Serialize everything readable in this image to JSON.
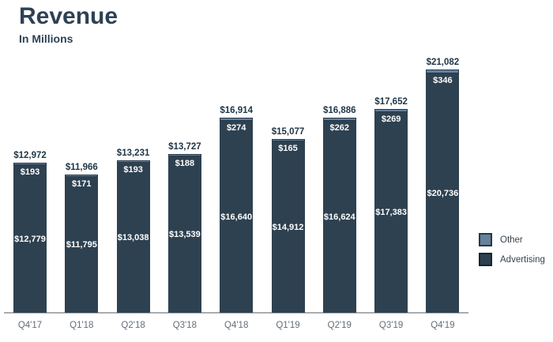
{
  "header": {
    "title": "Revenue",
    "subtitle": "In Millions"
  },
  "legend": {
    "items": [
      {
        "label": "Other",
        "color": "#66829C"
      },
      {
        "label": "Advertising",
        "color": "#2E4150"
      }
    ]
  },
  "colors": {
    "title": "#2E4154",
    "advertising": "#2E4150",
    "other": "#66829C",
    "other_border": "#24384A",
    "advertising_border": "#17262F",
    "total_label": "#1E3546",
    "value_label": "#FFFFFF",
    "axis_line": "#A9ADAF",
    "category_label": "#646E78",
    "legend_label": "#37434D"
  },
  "chart_data": {
    "type": "bar",
    "stacked": true,
    "title": "Revenue",
    "subtitle": "In Millions",
    "unit": "USD millions",
    "categories": [
      "Q4'17",
      "Q1'18",
      "Q2'18",
      "Q3'18",
      "Q4'18",
      "Q1'19",
      "Q2'19",
      "Q3'19",
      "Q4'19"
    ],
    "series": [
      {
        "name": "Advertising",
        "values": [
          12779,
          11795,
          13038,
          13539,
          16640,
          14912,
          16624,
          17383,
          20736
        ]
      },
      {
        "name": "Other",
        "values": [
          193,
          171,
          193,
          188,
          274,
          165,
          262,
          269,
          346
        ]
      }
    ],
    "totals": [
      12972,
      11966,
      13231,
      13727,
      16914,
      15077,
      16886,
      17652,
      21082
    ],
    "total_labels": [
      "$12,972",
      "$11,966",
      "$13,231",
      "$13,727",
      "$16,914",
      "$15,077",
      "$16,886",
      "$17,652",
      "$21,082"
    ],
    "series_labels": {
      "Advertising": [
        "$12,779",
        "$11,795",
        "$13,038",
        "$13,539",
        "$16,640",
        "$14,912",
        "$16,624",
        "$17,383",
        "$20,736"
      ],
      "Other": [
        "$193",
        "$171",
        "$193",
        "$188",
        "$274",
        "$165",
        "$262",
        "$269",
        "$346"
      ]
    },
    "legend_position": "right",
    "value_axis_visible": false,
    "gridlines": false
  }
}
